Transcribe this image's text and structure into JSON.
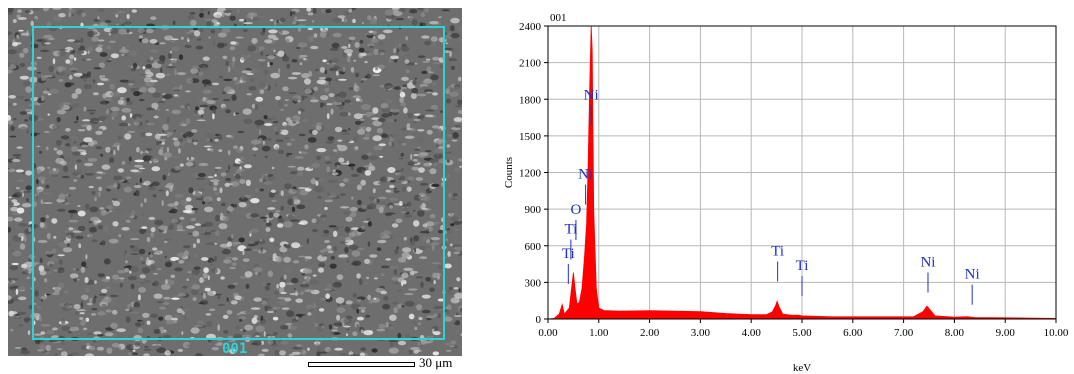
{
  "sem_image": {
    "region_label": "001",
    "scale_label": "30 μm",
    "box_color": "#2fd3d6"
  },
  "chart_data": {
    "type": "area",
    "title": "001",
    "xlabel": "keV",
    "ylabel": "Counts",
    "xlim": [
      0,
      10
    ],
    "ylim": [
      0,
      2400
    ],
    "x_ticks": [
      "0.00",
      "1.00",
      "2.00",
      "3.00",
      "4.00",
      "5.00",
      "6.00",
      "7.00",
      "8.00",
      "9.00",
      "10.00"
    ],
    "y_ticks": [
      "0",
      "300",
      "600",
      "900",
      "1200",
      "1500",
      "1800",
      "2100",
      "2400"
    ],
    "grid": true,
    "fill_color": "#ff0000",
    "peak_label_color": "#1f2fc8",
    "spectrum": [
      [
        0.0,
        0
      ],
      [
        0.12,
        5
      ],
      [
        0.22,
        40
      ],
      [
        0.28,
        120
      ],
      [
        0.32,
        40
      ],
      [
        0.38,
        70
      ],
      [
        0.42,
        90
      ],
      [
        0.46,
        240
      ],
      [
        0.5,
        380
      ],
      [
        0.53,
        260
      ],
      [
        0.57,
        120
      ],
      [
        0.62,
        140
      ],
      [
        0.67,
        250
      ],
      [
        0.72,
        520
      ],
      [
        0.76,
        780
      ],
      [
        0.79,
        1250
      ],
      [
        0.82,
        1900
      ],
      [
        0.85,
        2450
      ],
      [
        0.87,
        2200
      ],
      [
        0.9,
        900
      ],
      [
        0.95,
        250
      ],
      [
        1.0,
        90
      ],
      [
        1.1,
        70
      ],
      [
        1.4,
        65
      ],
      [
        2.0,
        68
      ],
      [
        2.5,
        65
      ],
      [
        3.0,
        60
      ],
      [
        3.5,
        45
      ],
      [
        4.0,
        35
      ],
      [
        4.3,
        35
      ],
      [
        4.42,
        60
      ],
      [
        4.48,
        110
      ],
      [
        4.51,
        145
      ],
      [
        4.55,
        100
      ],
      [
        4.62,
        40
      ],
      [
        4.8,
        30
      ],
      [
        4.93,
        32
      ],
      [
        5.0,
        25
      ],
      [
        5.5,
        20
      ],
      [
        6.5,
        18
      ],
      [
        7.2,
        20
      ],
      [
        7.38,
        60
      ],
      [
        7.46,
        105
      ],
      [
        7.52,
        75
      ],
      [
        7.62,
        25
      ],
      [
        8.0,
        15
      ],
      [
        8.25,
        20
      ],
      [
        8.4,
        12
      ],
      [
        9.0,
        10
      ],
      [
        10.0,
        5
      ]
    ],
    "annotations": [
      {
        "text": "Ni",
        "x": 0.85,
        "y": 1800
      },
      {
        "text": "Ni",
        "x": 0.74,
        "y": 1150
      },
      {
        "text": "O",
        "x": 0.55,
        "y": 860
      },
      {
        "text": "Ti",
        "x": 0.45,
        "y": 700
      },
      {
        "text": "Ti",
        "x": 0.4,
        "y": 500
      },
      {
        "text": "Ti",
        "x": 4.52,
        "y": 520
      },
      {
        "text": "Ti",
        "x": 5.0,
        "y": 400
      },
      {
        "text": "Ni",
        "x": 7.48,
        "y": 430
      },
      {
        "text": "Ni",
        "x": 8.35,
        "y": 330
      }
    ]
  }
}
